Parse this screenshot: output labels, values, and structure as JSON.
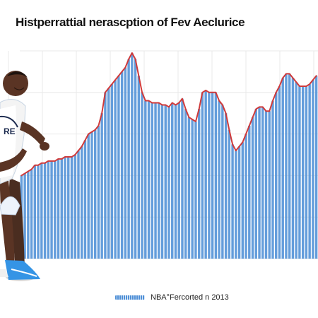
{
  "chart_data": {
    "type": "bar",
    "title": "Histperrattial nerascption of Fev Aeclurice",
    "xlabel": "",
    "ylabel": "",
    "ylim": [
      0,
      100
    ],
    "grid": true,
    "legend_placement": "bottom-center",
    "series": [
      {
        "name": "NBA°Fercorted n 2013",
        "values": [
          40,
          41,
          42,
          43,
          45,
          45,
          46,
          46,
          47,
          47,
          47,
          48,
          48,
          49,
          49,
          49,
          50,
          52,
          54,
          57,
          60,
          61,
          62,
          64,
          70,
          80,
          82,
          84,
          86,
          88,
          90,
          92,
          96,
          99,
          96,
          88,
          80,
          76,
          76,
          75,
          75,
          75,
          74,
          74,
          73,
          75,
          74,
          75,
          77,
          72,
          68,
          67,
          66,
          72,
          80,
          81,
          80,
          80,
          80,
          76,
          74,
          70,
          62,
          55,
          52,
          54,
          56,
          60,
          64,
          68,
          72,
          73,
          73,
          71,
          71,
          76,
          80,
          83,
          87,
          89,
          89,
          87,
          85,
          83,
          83,
          83,
          84,
          86,
          88
        ]
      }
    ],
    "colors": {
      "bars": "#4f8fd6",
      "line": "#d03a3a",
      "grid": "#e9e9e9"
    }
  },
  "figure": {
    "photo": "basketball-player"
  }
}
